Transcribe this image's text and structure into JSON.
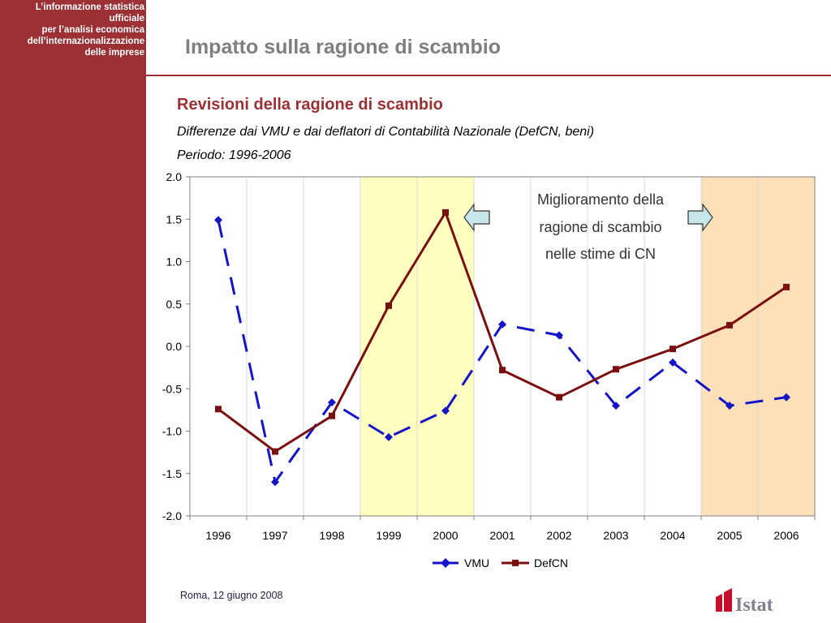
{
  "sidebar": {
    "header_lines": [
      "L’informazione statistica",
      "ufficiale",
      "per l’analisi economica",
      "dell’internazionalizzazione",
      "delle imprese"
    ]
  },
  "header": {
    "title": "Impatto sulla ragione di scambio"
  },
  "footer": {
    "date": "Roma, 12 giugno 2008",
    "logo_text": "Istat"
  },
  "colors": {
    "brand": "#9b3035",
    "vmu": "#1414c8",
    "defcn": "#7b0f0f",
    "highlight_yellow": "#ffffc0",
    "highlight_orange": "#fde0b8"
  },
  "chart_data": {
    "type": "line",
    "title": "Revisioni della ragione di scambio",
    "subtitle": "Differenze dai VMU e dai deflatori di Contabilità Nazionale (DefCN, beni)",
    "period": "Periodo: 1996-2006",
    "categories": [
      "1996",
      "1997",
      "1998",
      "1999",
      "2000",
      "2001",
      "2002",
      "2003",
      "2004",
      "2005",
      "2006"
    ],
    "ylim": [
      -2.0,
      2.0
    ],
    "yticks": [
      "2.0",
      "1.5",
      "1.0",
      "0.5",
      "0.0",
      "-0.5",
      "-1.0",
      "-1.5",
      "-2.0"
    ],
    "series": [
      {
        "name": "VMU",
        "values": [
          1.49,
          -1.6,
          -0.66,
          -1.07,
          -0.76,
          0.26,
          0.13,
          -0.7,
          -0.19,
          -0.7,
          -0.6
        ]
      },
      {
        "name": "DefCN",
        "values": [
          -0.74,
          -1.24,
          -0.82,
          0.48,
          1.58,
          -0.28,
          -0.6,
          -0.27,
          -0.03,
          0.25,
          0.7
        ]
      }
    ],
    "highlight_periods": [
      {
        "from": "1999",
        "to": "2000",
        "color": "#ffffc0"
      },
      {
        "from": "2005",
        "to": "2006",
        "color": "#fde0b8"
      }
    ],
    "annotation": {
      "lines": [
        "Miglioramento della",
        "ragione di scambio",
        "nelle stime di CN"
      ]
    },
    "legend": {
      "position": "bottom",
      "entries": [
        "VMU",
        "DefCN"
      ]
    },
    "grid": "vertical"
  }
}
